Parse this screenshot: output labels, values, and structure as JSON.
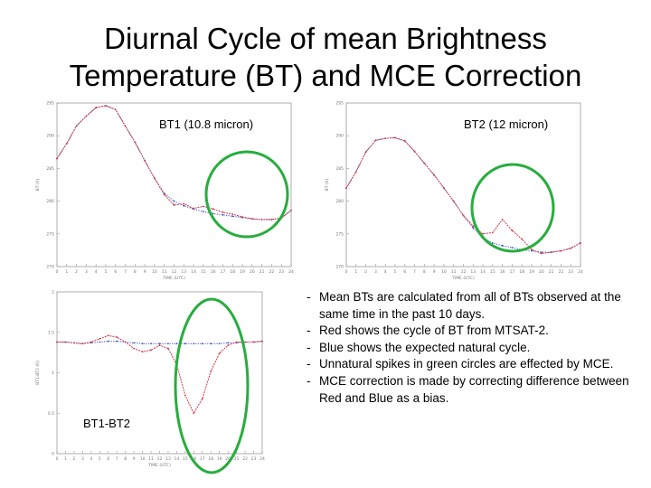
{
  "title": [
    "Diurnal Cycle of mean Brightness",
    "Temperature (BT) and MCE Correction"
  ],
  "chart_data": [
    {
      "type": "line",
      "label": "BT1 (10.8 micron)",
      "ylabel": "BT (K)",
      "xlabel": "TIME (UTC)",
      "x": [
        "0",
        "1",
        "2",
        "3",
        "4",
        "5",
        "6",
        "7",
        "8",
        "9",
        "10",
        "11",
        "12",
        "13",
        "14",
        "15",
        "16",
        "17",
        "18",
        "19",
        "20",
        "21",
        "22",
        "23",
        "24"
      ],
      "y_ticks": [
        "270",
        "275",
        "280",
        "285",
        "290",
        "295"
      ],
      "ylim": [
        270,
        295
      ],
      "series": [
        {
          "color": "#d23a48",
          "values": [
            286.5,
            288.8,
            291.5,
            293.0,
            294.3,
            294.6,
            294.0,
            291.5,
            289.0,
            286.2,
            283.5,
            281.0,
            279.4,
            279.6,
            278.9,
            279.2,
            278.8,
            278.3,
            278.0,
            277.6,
            277.3,
            277.2,
            277.2,
            277.4,
            278.6
          ]
        },
        {
          "color": "#3a4fc8",
          "values": [
            286.5,
            288.8,
            291.5,
            293.0,
            294.3,
            294.6,
            294.0,
            291.5,
            289.0,
            286.2,
            283.5,
            281.2,
            280.0,
            279.3,
            278.8,
            278.4,
            278.1,
            277.9,
            277.7,
            277.5,
            277.3,
            277.2,
            277.2,
            277.4,
            278.6
          ]
        }
      ]
    },
    {
      "type": "line",
      "label": "BT2 (12 micron)",
      "ylabel": "BT (K)",
      "xlabel": "TIME (UTC)",
      "x": [
        "0",
        "1",
        "2",
        "3",
        "4",
        "5",
        "6",
        "7",
        "8",
        "9",
        "10",
        "11",
        "12",
        "13",
        "14",
        "15",
        "16",
        "17",
        "18",
        "19",
        "20",
        "21",
        "22",
        "23",
        "24"
      ],
      "y_ticks": [
        "270",
        "275",
        "280",
        "285",
        "290",
        "295"
      ],
      "ylim": [
        270,
        295
      ],
      "series": [
        {
          "color": "#d23a48",
          "values": [
            282.0,
            284.5,
            287.5,
            289.3,
            289.6,
            289.7,
            289.2,
            287.6,
            285.8,
            284.0,
            282.0,
            280.0,
            277.8,
            276.2,
            275.0,
            275.2,
            277.2,
            275.5,
            274.2,
            272.6,
            272.0,
            272.2,
            272.4,
            272.8,
            273.6
          ]
        },
        {
          "color": "#3a4fc8",
          "values": [
            282.0,
            284.5,
            287.5,
            289.3,
            289.6,
            289.7,
            289.2,
            287.6,
            285.8,
            284.0,
            282.0,
            280.0,
            277.8,
            275.9,
            274.4,
            273.6,
            273.2,
            272.9,
            272.6,
            272.4,
            272.2,
            272.2,
            272.4,
            272.8,
            273.6
          ]
        }
      ]
    },
    {
      "type": "line",
      "label": "BT1-BT2",
      "ylabel": "BT1-BT2 (K)",
      "xlabel": "TIME (UTC)",
      "x": [
        "0",
        "1",
        "2",
        "3",
        "4",
        "5",
        "6",
        "7",
        "8",
        "9",
        "10",
        "11",
        "12",
        "13",
        "14",
        "15",
        "16",
        "17",
        "18",
        "19",
        "20",
        "21",
        "22",
        "23",
        "24"
      ],
      "y_ticks": [
        "0",
        "0.5",
        "1",
        "1.5",
        "2"
      ],
      "ylim": [
        0,
        2
      ],
      "series": [
        {
          "color": "#d23a48",
          "values": [
            1.38,
            1.38,
            1.37,
            1.36,
            1.38,
            1.42,
            1.46,
            1.44,
            1.38,
            1.3,
            1.26,
            1.28,
            1.34,
            1.3,
            1.1,
            0.72,
            0.5,
            0.68,
            1.02,
            1.24,
            1.34,
            1.38,
            1.38,
            1.38,
            1.39
          ]
        },
        {
          "color": "#3a4fc8",
          "values": [
            1.38,
            1.38,
            1.37,
            1.36,
            1.37,
            1.38,
            1.39,
            1.39,
            1.38,
            1.37,
            1.36,
            1.36,
            1.36,
            1.36,
            1.36,
            1.36,
            1.36,
            1.36,
            1.36,
            1.36,
            1.37,
            1.37,
            1.38,
            1.38,
            1.39
          ]
        }
      ]
    }
  ],
  "highlight_color": "#27ad3d",
  "notes": [
    "Mean BTs are calculated from all of BTs observed at the same time in the past 10 days.",
    "Red shows the cycle of BT from MTSAT-2.",
    "Blue shows the expected natural cycle.",
    "Unnatural spikes in green circles are effected by MCE.",
    "MCE correction is made by correcting difference between Red and Blue as a bias."
  ]
}
